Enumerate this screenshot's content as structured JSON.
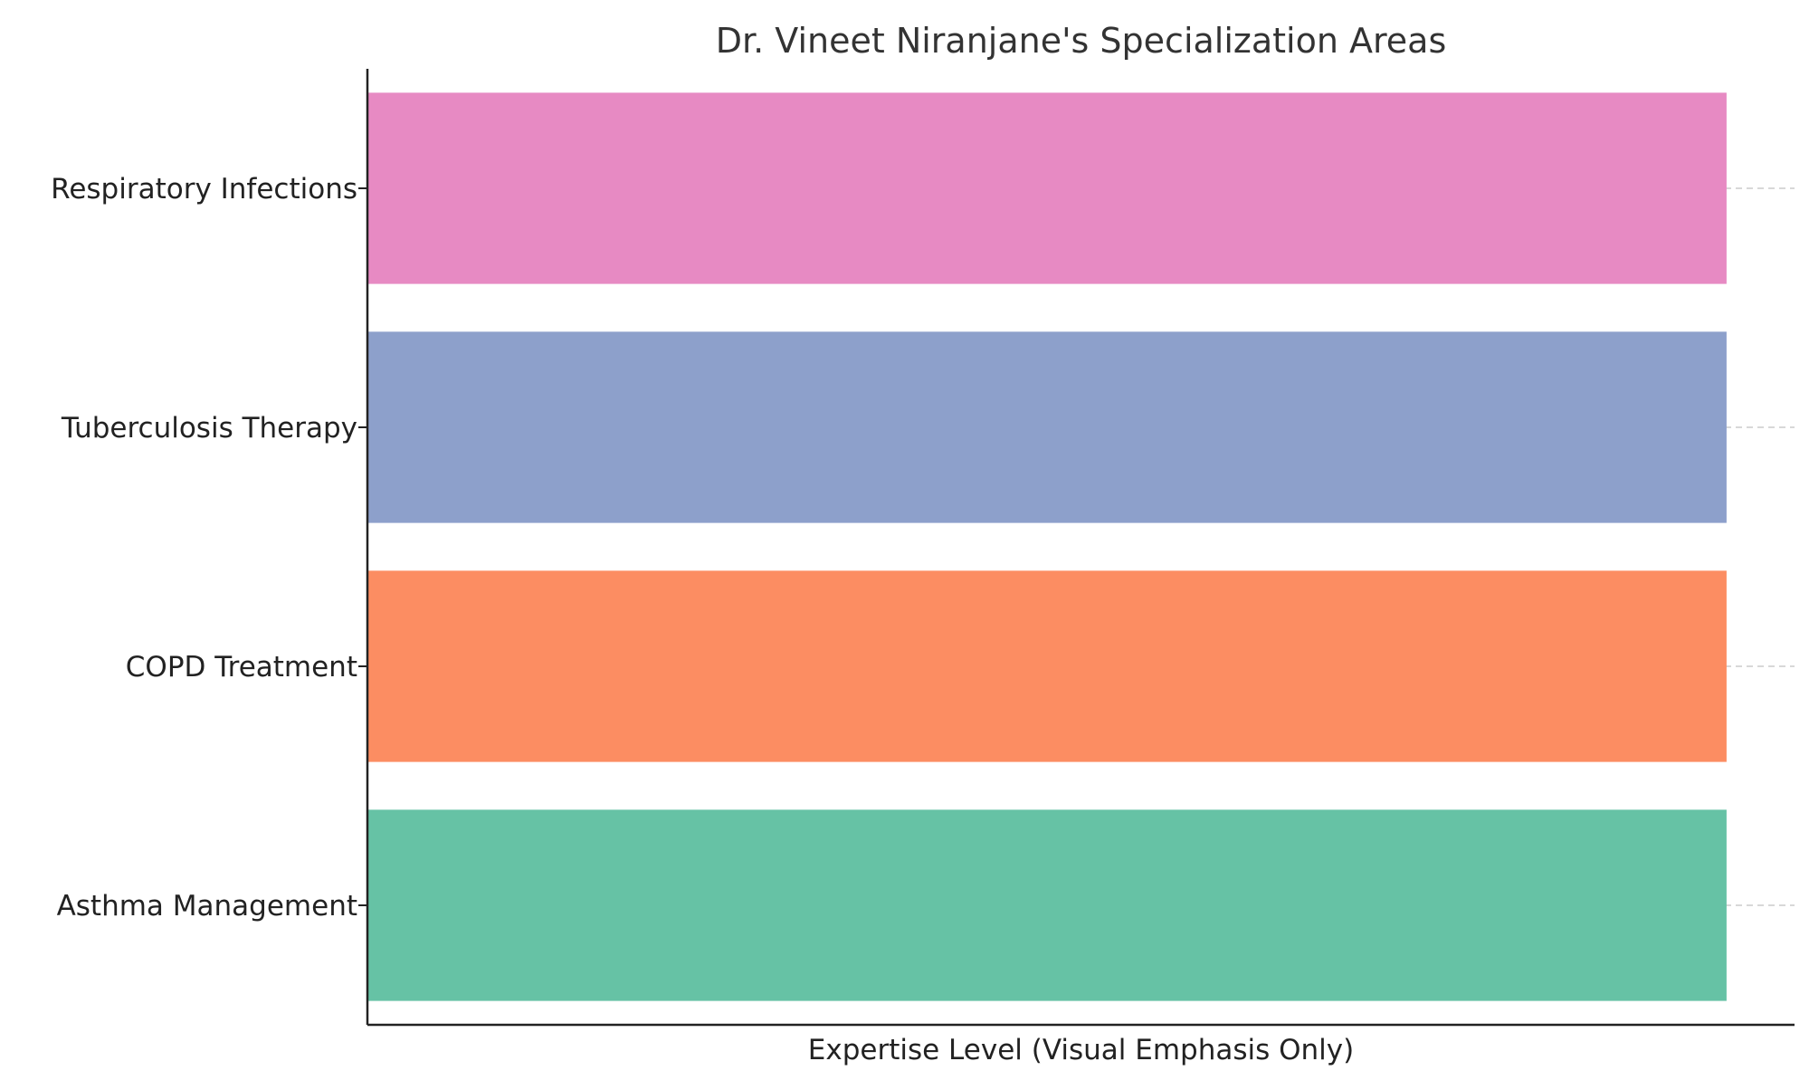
{
  "chart_data": {
    "type": "bar",
    "orientation": "horizontal",
    "title": "Dr. Vineet Niranjane's Specialization Areas",
    "xlabel": "Expertise Level (Visual Emphasis Only)",
    "ylabel": "",
    "categories": [
      "Asthma Management",
      "COPD Treatment",
      "Tuberculosis Therapy",
      "Respiratory Infections"
    ],
    "values": [
      1,
      1,
      1,
      1
    ],
    "colors": [
      "#66c2a5",
      "#fc8d62",
      "#8da0cb",
      "#e78ac3"
    ],
    "xlim": [
      0,
      1.05
    ],
    "x_ticks_shown": false,
    "grid": "horizontal dashed lines at category positions",
    "legend": "none"
  }
}
